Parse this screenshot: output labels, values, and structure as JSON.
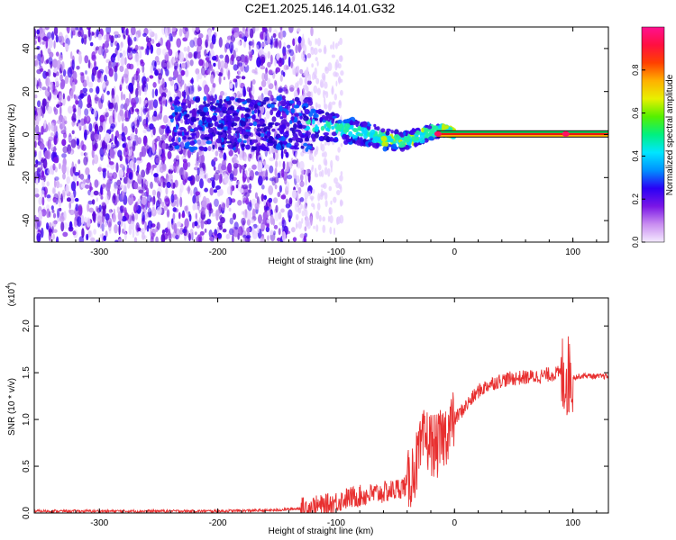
{
  "title": "C2E1.2025.146.14.01.G32",
  "chart_data": [
    {
      "type": "heatmap",
      "xlabel": "Height of straight line (km)",
      "ylabel": "Frequency (Hz)",
      "xlim": [
        -355,
        130
      ],
      "ylim": [
        -50,
        50
      ],
      "xticks": [
        -300,
        -200,
        -100,
        0,
        100
      ],
      "yticks": [
        -40,
        -20,
        0,
        20,
        40
      ],
      "colorbar": {
        "label": "Normalized spectral amplitude",
        "range": [
          0,
          1
        ],
        "ticks": [
          "0.0",
          "0.2",
          "0.4",
          "0.6",
          "0.8"
        ],
        "colors": [
          "#f4eaff",
          "#c98df0",
          "#7a16e6",
          "#2a00f5",
          "#0090ff",
          "#00e6ff",
          "#00f080",
          "#55f000",
          "#e8f000",
          "#ffb000",
          "#ff4000",
          "#ff1040",
          "#ff1090"
        ]
      },
      "signal_track": {
        "x": [
          -130,
          -110,
          -90,
          -70,
          -60,
          -45,
          -30,
          -20,
          -10,
          0,
          20,
          50,
          80,
          100,
          130
        ],
        "y": [
          5,
          4,
          2,
          0,
          -2,
          -3,
          -1,
          1,
          2,
          0.5,
          0.3,
          0.2,
          0.2,
          0.2,
          0.2
        ]
      }
    },
    {
      "type": "line",
      "xlabel": "Height of straight line (km)",
      "ylabel": "SNR (10 * v/v)",
      "y_multiplier": "(x10^4)",
      "xlim": [
        -355,
        130
      ],
      "ylim": [
        0,
        2.3
      ],
      "xticks": [
        -300,
        -200,
        -100,
        0,
        100
      ],
      "yticks": [
        "0.0",
        "0.5",
        "1.0",
        "1.5",
        "2.0"
      ],
      "series": [
        {
          "color": "#e83030",
          "x": [
            -355,
            -300,
            -250,
            -200,
            -150,
            -130,
            -110,
            -100,
            -90,
            -80,
            -70,
            -60,
            -50,
            -40,
            -35,
            -30,
            -25,
            -20,
            -15,
            -10,
            0,
            10,
            20,
            30,
            40,
            50,
            60,
            70,
            80,
            90,
            95,
            98,
            100,
            105,
            110,
            120,
            130
          ],
          "y": [
            0.02,
            0.02,
            0.02,
            0.02,
            0.03,
            0.05,
            0.08,
            0.12,
            0.16,
            0.18,
            0.2,
            0.22,
            0.25,
            0.3,
            0.45,
            0.6,
            0.8,
            0.75,
            0.7,
            0.8,
            1.0,
            1.15,
            1.3,
            1.38,
            1.42,
            1.44,
            1.45,
            1.46,
            1.48,
            1.5,
            1.45,
            1.5,
            1.45,
            1.46,
            1.47,
            1.46,
            1.46
          ]
        }
      ]
    }
  ]
}
